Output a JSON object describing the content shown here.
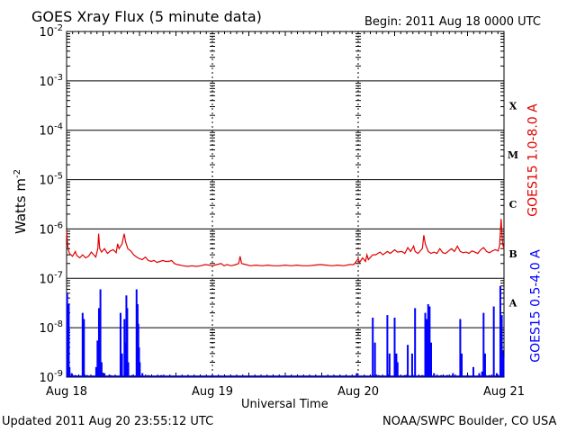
{
  "header": {
    "title": "GOES Xray Flux (5 minute data)",
    "begin": "Begin:  2011 Aug 18 0000 UTC"
  },
  "footer": {
    "updated": "Updated 2011 Aug 20 23:55:12 UTC",
    "source": "NOAA/SWPC Boulder, CO USA"
  },
  "chart_data": {
    "type": "line",
    "title": "GOES Xray Flux (5 minute data)",
    "xlabel": "Universal Time",
    "ylabel": "Watts m-2",
    "ylabel_main": "Watts m",
    "ylabel_sup": "-2",
    "yscale": "log",
    "ylim": [
      1e-09,
      0.01
    ],
    "y_ticks": [
      {
        "base": "10",
        "exp": "-2"
      },
      {
        "base": "10",
        "exp": "-3"
      },
      {
        "base": "10",
        "exp": "-4"
      },
      {
        "base": "10",
        "exp": "-5"
      },
      {
        "base": "10",
        "exp": "-6"
      },
      {
        "base": "10",
        "exp": "-7"
      },
      {
        "base": "10",
        "exp": "-8"
      },
      {
        "base": "10",
        "exp": "-9"
      }
    ],
    "xlim": [
      "2011-08-18",
      "2011-08-21"
    ],
    "x_ticks": [
      "Aug 18",
      "Aug 19",
      "Aug 20",
      "Aug 21"
    ],
    "flare_classes": [
      "X",
      "M",
      "C",
      "B",
      "A"
    ],
    "grid": true,
    "series": [
      {
        "name": "GOES15 1.0-8.0 A",
        "color": "#e00000",
        "points": [
          [
            0.0,
            9e-07
          ],
          [
            0.01,
            4e-07
          ],
          [
            0.02,
            3.2e-07
          ],
          [
            0.04,
            2.8e-07
          ],
          [
            0.06,
            3.5e-07
          ],
          [
            0.07,
            2.9e-07
          ],
          [
            0.09,
            2.6e-07
          ],
          [
            0.11,
            3e-07
          ],
          [
            0.13,
            2.6e-07
          ],
          [
            0.15,
            2.8e-07
          ],
          [
            0.17,
            3.4e-07
          ],
          [
            0.19,
            2.9e-07
          ],
          [
            0.2,
            2.7e-07
          ],
          [
            0.214,
            4e-07
          ],
          [
            0.22,
            8e-07
          ],
          [
            0.227,
            4e-07
          ],
          [
            0.24,
            3.4e-07
          ],
          [
            0.26,
            4e-07
          ],
          [
            0.28,
            3.2e-07
          ],
          [
            0.3,
            3.6e-07
          ],
          [
            0.32,
            3.8e-07
          ],
          [
            0.34,
            3.3e-07
          ],
          [
            0.35,
            5e-07
          ],
          [
            0.36,
            4e-07
          ],
          [
            0.38,
            5e-07
          ],
          [
            0.395,
            8e-07
          ],
          [
            0.405,
            5.5e-07
          ],
          [
            0.42,
            4e-07
          ],
          [
            0.44,
            3.6e-07
          ],
          [
            0.46,
            3e-07
          ],
          [
            0.48,
            2.7e-07
          ],
          [
            0.5,
            2.5e-07
          ],
          [
            0.52,
            2.4e-07
          ],
          [
            0.54,
            2.7e-07
          ],
          [
            0.56,
            2.3e-07
          ],
          [
            0.58,
            2.2e-07
          ],
          [
            0.6,
            2.3e-07
          ],
          [
            0.62,
            2.1e-07
          ],
          [
            0.64,
            2.2e-07
          ],
          [
            0.66,
            2.3e-07
          ],
          [
            0.68,
            2.2e-07
          ],
          [
            0.7,
            2.2e-07
          ],
          [
            0.72,
            2.3e-07
          ],
          [
            0.74,
            2e-07
          ],
          [
            0.76,
            1.9e-07
          ],
          [
            0.78,
            1.85e-07
          ],
          [
            0.8,
            1.8e-07
          ],
          [
            0.83,
            1.75e-07
          ],
          [
            0.86,
            1.8e-07
          ],
          [
            0.89,
            1.75e-07
          ],
          [
            0.92,
            1.8e-07
          ],
          [
            0.95,
            1.9e-07
          ],
          [
            0.98,
            1.85e-07
          ],
          [
            1.0,
            1.8e-07
          ],
          [
            1.03,
            1.9e-07
          ],
          [
            1.06,
            2e-07
          ],
          [
            1.08,
            1.8e-07
          ],
          [
            1.1,
            1.9e-07
          ],
          [
            1.13,
            1.8e-07
          ],
          [
            1.16,
            1.9e-07
          ],
          [
            1.18,
            2e-07
          ],
          [
            1.19,
            2.8e-07
          ],
          [
            1.2,
            2e-07
          ],
          [
            1.23,
            1.9e-07
          ],
          [
            1.26,
            1.8e-07
          ],
          [
            1.3,
            1.85e-07
          ],
          [
            1.34,
            1.8e-07
          ],
          [
            1.38,
            1.85e-07
          ],
          [
            1.42,
            1.8e-07
          ],
          [
            1.46,
            1.8e-07
          ],
          [
            1.5,
            1.85e-07
          ],
          [
            1.54,
            1.8e-07
          ],
          [
            1.58,
            1.85e-07
          ],
          [
            1.62,
            1.8e-07
          ],
          [
            1.66,
            1.8e-07
          ],
          [
            1.7,
            1.85e-07
          ],
          [
            1.74,
            1.9e-07
          ],
          [
            1.78,
            1.85e-07
          ],
          [
            1.82,
            1.8e-07
          ],
          [
            1.86,
            1.85e-07
          ],
          [
            1.9,
            1.8e-07
          ],
          [
            1.94,
            1.9e-07
          ],
          [
            1.97,
            1.9e-07
          ],
          [
            2.0,
            2.5e-07
          ],
          [
            2.01,
            2.1e-07
          ],
          [
            2.03,
            2.6e-07
          ],
          [
            2.05,
            2.2e-07
          ],
          [
            2.06,
            3e-07
          ],
          [
            2.07,
            2.4e-07
          ],
          [
            2.09,
            2.8e-07
          ],
          [
            2.1,
            3e-07
          ],
          [
            2.12,
            3e-07
          ],
          [
            2.15,
            3.4e-07
          ],
          [
            2.17,
            3e-07
          ],
          [
            2.2,
            3.5e-07
          ],
          [
            2.22,
            3.2e-07
          ],
          [
            2.25,
            3.8e-07
          ],
          [
            2.27,
            3.4e-07
          ],
          [
            2.3,
            3.5e-07
          ],
          [
            2.32,
            3.2e-07
          ],
          [
            2.34,
            4.2e-07
          ],
          [
            2.36,
            3.5e-07
          ],
          [
            2.38,
            4.5e-07
          ],
          [
            2.39,
            3.5e-07
          ],
          [
            2.41,
            3.2e-07
          ],
          [
            2.44,
            4e-07
          ],
          [
            2.45,
            7.5e-07
          ],
          [
            2.46,
            5e-07
          ],
          [
            2.48,
            3.5e-07
          ],
          [
            2.5,
            3.2e-07
          ],
          [
            2.52,
            3.4e-07
          ],
          [
            2.54,
            3.2e-07
          ],
          [
            2.56,
            4e-07
          ],
          [
            2.58,
            3.3e-07
          ],
          [
            2.6,
            3.2e-07
          ],
          [
            2.62,
            3.6e-07
          ],
          [
            2.64,
            4e-07
          ],
          [
            2.66,
            3.5e-07
          ],
          [
            2.68,
            4.5e-07
          ],
          [
            2.7,
            3.5e-07
          ],
          [
            2.72,
            3.3e-07
          ],
          [
            2.74,
            3.4e-07
          ],
          [
            2.76,
            3.2e-07
          ],
          [
            2.78,
            3.6e-07
          ],
          [
            2.8,
            3.4e-07
          ],
          [
            2.82,
            3.2e-07
          ],
          [
            2.84,
            3.8e-07
          ],
          [
            2.86,
            4.2e-07
          ],
          [
            2.88,
            3.5e-07
          ],
          [
            2.9,
            3.3e-07
          ],
          [
            2.92,
            3.6e-07
          ],
          [
            2.94,
            3.8e-07
          ],
          [
            2.96,
            3.6e-07
          ],
          [
            2.97,
            4.6e-07
          ],
          [
            2.98,
            1.6e-06
          ],
          [
            2.99,
            5e-07
          ],
          [
            3.0,
            4e-07
          ]
        ]
      },
      {
        "name": "GOES15 0.5-4.0 A",
        "color": "#0000ff",
        "baseline": 1e-09,
        "spikes": [
          [
            0.004,
            5e-08
          ],
          [
            0.015,
            3e-08
          ],
          [
            0.02,
            1.6e-09
          ],
          [
            0.035,
            1.2e-09
          ],
          [
            0.06,
            1.1e-09
          ],
          [
            0.11,
            2e-08
          ],
          [
            0.119,
            1.5e-08
          ],
          [
            0.14,
            1.1e-09
          ],
          [
            0.203,
            1.6e-09
          ],
          [
            0.212,
            5.5e-09
          ],
          [
            0.222,
            2.5e-08
          ],
          [
            0.232,
            6e-08
          ],
          [
            0.24,
            2e-09
          ],
          [
            0.26,
            1.2e-09
          ],
          [
            0.3,
            1.1e-09
          ],
          [
            0.37,
            2e-08
          ],
          [
            0.38,
            3e-09
          ],
          [
            0.397,
            1.5e-08
          ],
          [
            0.402,
            5e-09
          ],
          [
            0.406,
            3e-09
          ],
          [
            0.41,
            4.5e-08
          ],
          [
            0.416,
            2.5e-08
          ],
          [
            0.423,
            2e-09
          ],
          [
            0.45,
            1.1e-09
          ],
          [
            0.48,
            6e-08
          ],
          [
            0.487,
            3e-08
          ],
          [
            0.492,
            1.2e-08
          ],
          [
            0.497,
            4e-09
          ],
          [
            0.502,
            2e-09
          ],
          [
            0.52,
            1.2e-09
          ],
          [
            0.56,
            1.1e-09
          ],
          [
            0.65,
            1.1e-09
          ],
          [
            0.8,
            1e-09
          ],
          [
            1.0,
            1.1e-09
          ],
          [
            1.5,
            1e-09
          ],
          [
            1.99,
            1.2e-09
          ],
          [
            2.1,
            1.6e-08
          ],
          [
            2.115,
            5e-09
          ],
          [
            2.14,
            1.1e-09
          ],
          [
            2.2,
            1.8e-08
          ],
          [
            2.215,
            3e-09
          ],
          [
            2.25,
            1.6e-08
          ],
          [
            2.262,
            3e-09
          ],
          [
            2.27,
            2e-09
          ],
          [
            2.32,
            1.1e-09
          ],
          [
            2.34,
            4.5e-09
          ],
          [
            2.37,
            3e-09
          ],
          [
            2.39,
            2.5e-08
          ],
          [
            2.44,
            1.1e-09
          ],
          [
            2.46,
            2e-08
          ],
          [
            2.47,
            1.5e-08
          ],
          [
            2.48,
            3e-08
          ],
          [
            2.49,
            2.7e-08
          ],
          [
            2.5,
            5e-09
          ],
          [
            2.52,
            1.2e-09
          ],
          [
            2.57,
            1.1e-09
          ],
          [
            2.61,
            1.1e-09
          ],
          [
            2.65,
            1.2e-09
          ],
          [
            2.7,
            1.5e-08
          ],
          [
            2.71,
            3e-09
          ],
          [
            2.75,
            1.1e-09
          ],
          [
            2.79,
            1.6e-09
          ],
          [
            2.83,
            1.2e-09
          ],
          [
            2.85,
            1.3e-09
          ],
          [
            2.86,
            2e-08
          ],
          [
            2.87,
            3e-09
          ],
          [
            2.9,
            1.1e-09
          ],
          [
            2.93,
            2.7e-08
          ],
          [
            2.95,
            1.2e-09
          ],
          [
            2.975,
            7e-08
          ],
          [
            2.985,
            1.8e-08
          ],
          [
            2.992,
            3.5e-09
          ],
          [
            2.997,
            2.5e-09
          ]
        ]
      }
    ],
    "notes": "Blue series drawn as vertical spikes from baseline; x positions in days after Begin"
  }
}
